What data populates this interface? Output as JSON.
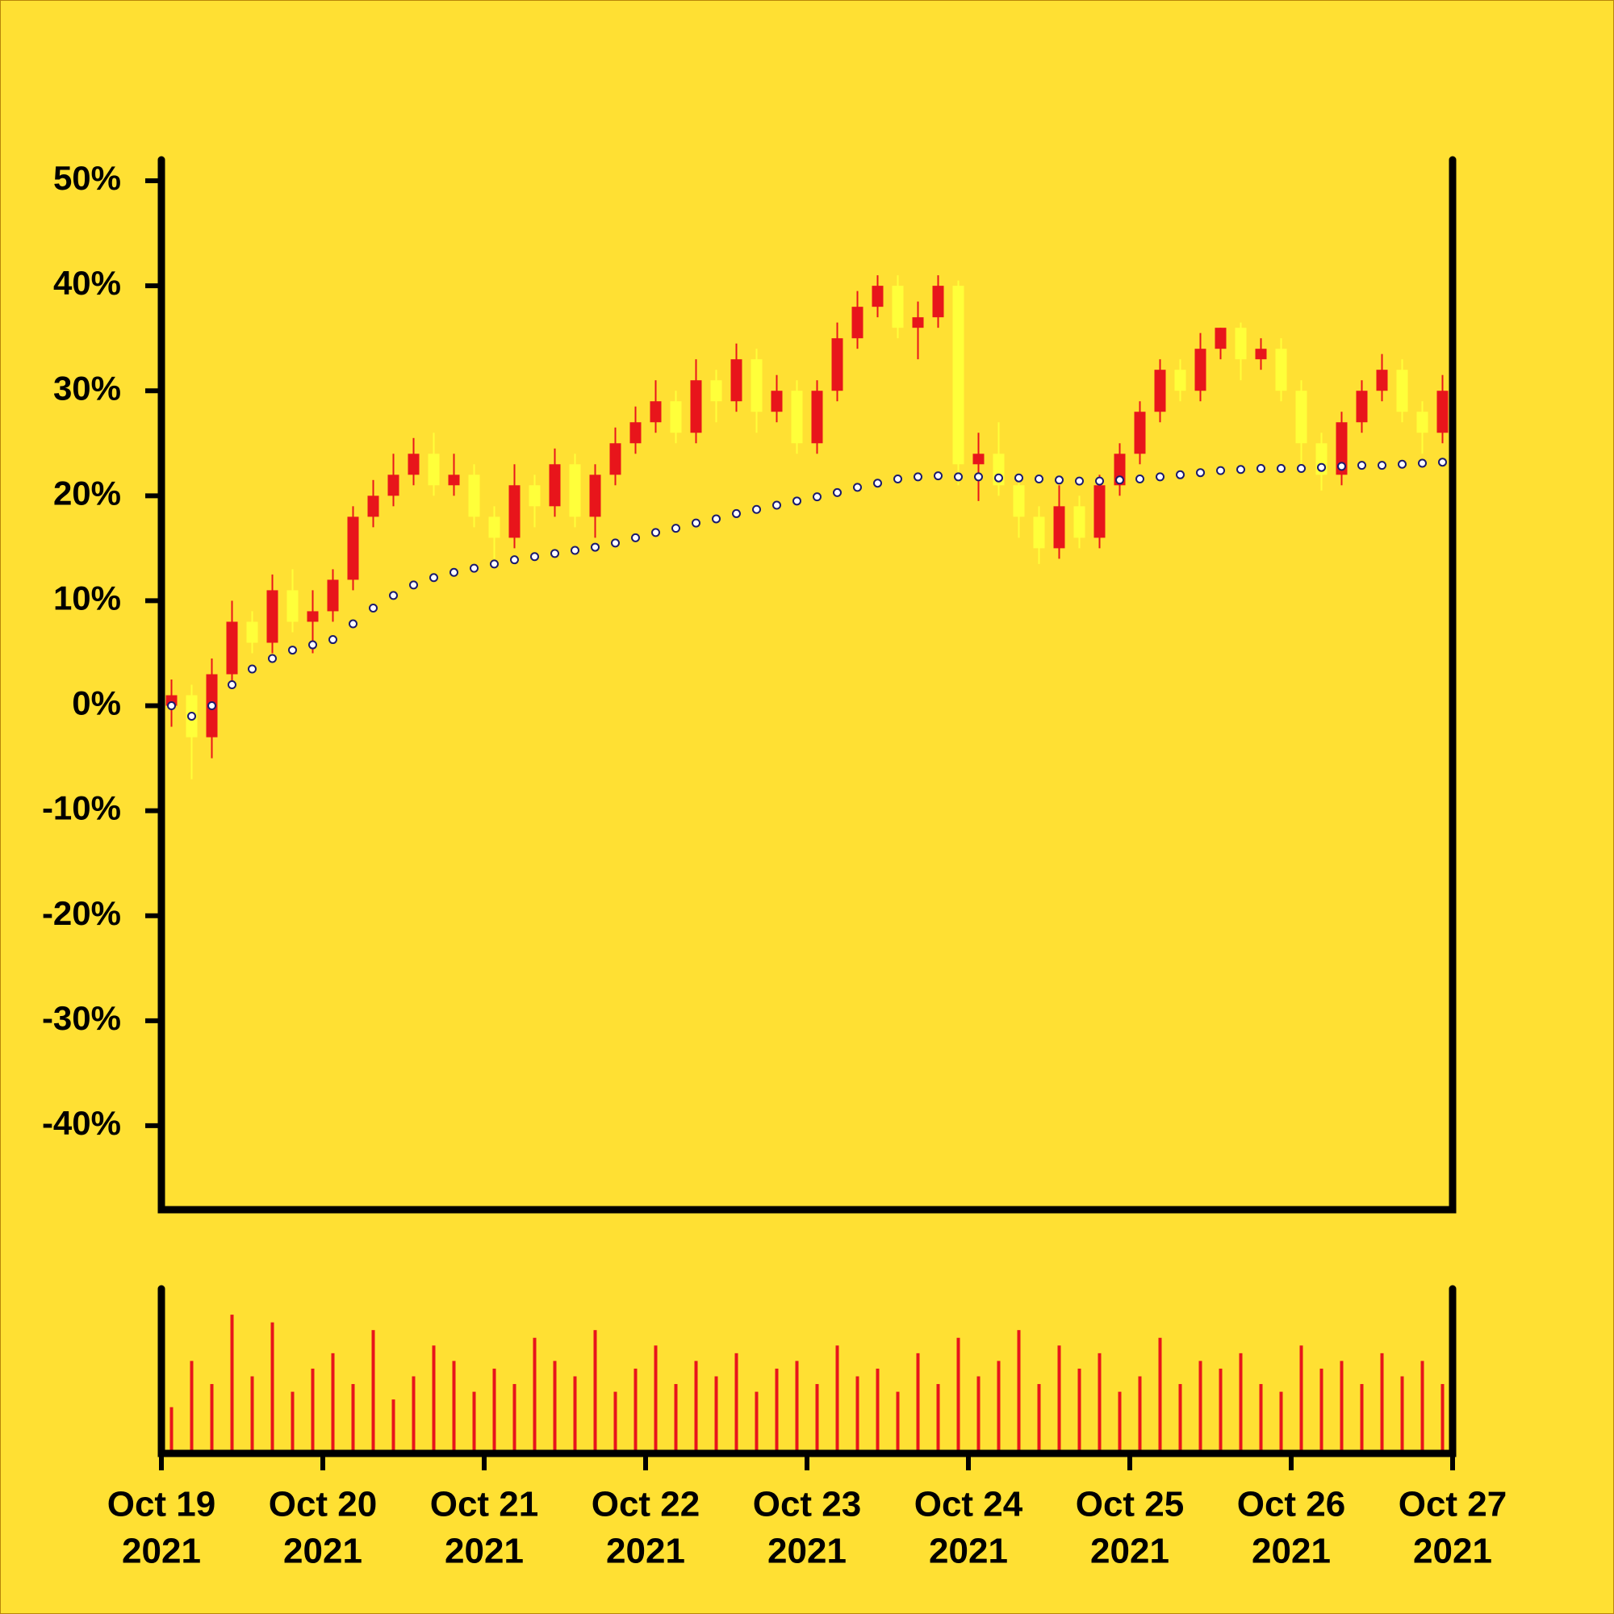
{
  "chart_data": {
    "type": "candlestick",
    "increasing_color": "#e8151b",
    "decreasing_color": "#ffff3a",
    "volume_color": "#e8151b",
    "ma_color": "#1a1a6e",
    "xlim": [
      0,
      64
    ],
    "xticks": [
      {
        "value": 0,
        "label": [
          "Oct 19",
          "2021"
        ]
      },
      {
        "value": 8,
        "label": [
          "Oct 20",
          "2021"
        ]
      },
      {
        "value": 16,
        "label": [
          "Oct 21",
          "2021"
        ]
      },
      {
        "value": 24,
        "label": [
          "Oct 22",
          "2021"
        ]
      },
      {
        "value": 32,
        "label": [
          "Oct 23",
          "2021"
        ]
      },
      {
        "value": 40,
        "label": [
          "Oct 24",
          "2021"
        ]
      },
      {
        "value": 48,
        "label": [
          "Oct 25",
          "2021"
        ]
      },
      {
        "value": 56,
        "label": [
          "Oct 26",
          "2021"
        ]
      },
      {
        "value": 64,
        "label": [
          "Oct 27",
          "2021"
        ]
      }
    ],
    "ylim": [
      -48,
      52
    ],
    "yticks": [
      {
        "value": -40,
        "label": "-40%"
      },
      {
        "value": -30,
        "label": "-30%"
      },
      {
        "value": -20,
        "label": "-20%"
      },
      {
        "value": -10,
        "label": "-10%"
      },
      {
        "value": 0,
        "label": "0%"
      },
      {
        "value": 10,
        "label": "10%"
      },
      {
        "value": 20,
        "label": "20%"
      },
      {
        "value": 30,
        "label": "30%"
      },
      {
        "value": 40,
        "label": "40%"
      },
      {
        "value": 50,
        "label": "50%"
      }
    ],
    "open": [
      0,
      1,
      -3,
      3,
      8,
      6,
      11,
      8,
      9,
      12,
      18,
      20,
      22,
      24,
      21,
      22,
      18,
      16,
      21,
      19,
      23,
      18,
      22,
      25,
      27,
      29,
      26,
      31,
      29,
      33,
      28,
      30,
      25,
      30,
      35,
      38,
      40,
      36,
      37,
      40,
      23,
      24,
      21,
      18,
      15,
      19,
      16,
      21,
      24,
      28,
      32,
      30,
      34,
      36,
      33,
      34,
      30,
      25,
      22,
      27,
      30,
      32,
      28,
      26
    ],
    "high": [
      2.5,
      2,
      4.5,
      10,
      9,
      12.5,
      13,
      11,
      13,
      19,
      21.5,
      24,
      25.5,
      26,
      24,
      23,
      19,
      23,
      22,
      24.5,
      24,
      23,
      26.5,
      28.5,
      31,
      30,
      33,
      32,
      34.5,
      34,
      31.5,
      31,
      31,
      36.5,
      39.5,
      41,
      41,
      38.5,
      41,
      40.5,
      26,
      27,
      22,
      19,
      21,
      20,
      22,
      25,
      29,
      33,
      33,
      35.5,
      36,
      36.5,
      35,
      35,
      31,
      26,
      28,
      31,
      33.5,
      33,
      29,
      31.5
    ],
    "low": [
      -2,
      -7,
      -5,
      2,
      5,
      5,
      7,
      5,
      8,
      11,
      17,
      19,
      21,
      20,
      20,
      17,
      14,
      15,
      17,
      18,
      17,
      16,
      21,
      24,
      26,
      25,
      25,
      27,
      28,
      26,
      27,
      24,
      24,
      29,
      34,
      37,
      35,
      33,
      36,
      21,
      19.5,
      20,
      16,
      13.5,
      14,
      15,
      15,
      20,
      23,
      27,
      29,
      29,
      33,
      31,
      32,
      29,
      23,
      20.5,
      21,
      26,
      29,
      27,
      24,
      25
    ],
    "close": [
      1,
      -3,
      3,
      8,
      6,
      11,
      8,
      9,
      12,
      18,
      20,
      22,
      24,
      21,
      22,
      18,
      16,
      21,
      19,
      23,
      18,
      22,
      25,
      27,
      29,
      26,
      31,
      29,
      33,
      28,
      30,
      25,
      30,
      35,
      38,
      40,
      36,
      37,
      40,
      23,
      24,
      21,
      18,
      15,
      19,
      16,
      21,
      24,
      28,
      32,
      30,
      34,
      36,
      33,
      34,
      30,
      25,
      22,
      27,
      30,
      32,
      28,
      26,
      30
    ],
    "ma": [
      0,
      -1,
      0,
      2,
      3.5,
      4.5,
      5.3,
      5.8,
      6.3,
      7.8,
      9.3,
      10.5,
      11.5,
      12.2,
      12.7,
      13.1,
      13.5,
      13.9,
      14.2,
      14.5,
      14.8,
      15.1,
      15.5,
      16,
      16.5,
      16.9,
      17.4,
      17.8,
      18.3,
      18.7,
      19.1,
      19.5,
      19.9,
      20.3,
      20.8,
      21.2,
      21.6,
      21.8,
      21.9,
      21.8,
      21.8,
      21.7,
      21.7,
      21.6,
      21.5,
      21.4,
      21.4,
      21.5,
      21.6,
      21.8,
      22,
      22.2,
      22.4,
      22.5,
      22.6,
      22.6,
      22.6,
      22.7,
      22.8,
      22.9,
      22.9,
      23,
      23.1,
      23.2
    ],
    "volume": [
      30,
      60,
      45,
      90,
      50,
      85,
      40,
      55,
      65,
      45,
      80,
      35,
      50,
      70,
      60,
      40,
      55,
      45,
      75,
      60,
      50,
      80,
      40,
      55,
      70,
      45,
      60,
      50,
      65,
      40,
      55,
      60,
      45,
      70,
      50,
      55,
      40,
      65,
      45,
      75,
      50,
      60,
      80,
      45,
      70,
      55,
      65,
      40,
      50,
      75,
      45,
      60,
      55,
      65,
      45,
      40,
      70,
      55,
      60,
      45,
      65,
      50,
      60,
      45
    ],
    "volume_ylim": [
      0,
      100
    ]
  }
}
